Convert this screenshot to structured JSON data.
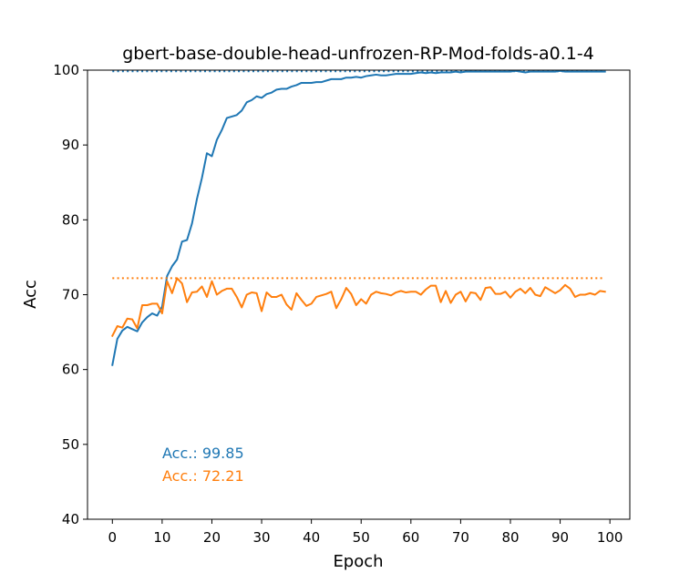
{
  "chart_data": {
    "type": "line",
    "title": "gbert-base-double-head-unfrozen-RP-Mod-folds-a0.1-4",
    "xlabel": "Epoch",
    "ylabel": "Acc",
    "xlim": [
      -5,
      104
    ],
    "ylim": [
      40,
      100
    ],
    "xticks": [
      0,
      10,
      20,
      30,
      40,
      50,
      60,
      70,
      80,
      90,
      100
    ],
    "yticks": [
      40,
      50,
      60,
      70,
      80,
      90,
      100
    ],
    "grid": false,
    "series": [
      {
        "color": "#1f77b4",
        "best": 99.85,
        "values": [
          60.6,
          64.1,
          65.2,
          65.7,
          65.4,
          65.1,
          66.3,
          67.0,
          67.5,
          67.2,
          68.4,
          72.5,
          73.8,
          74.7,
          77.1,
          77.3,
          79.5,
          82.8,
          85.6,
          88.9,
          88.5,
          90.7,
          92.0,
          93.6,
          93.8,
          94.0,
          94.6,
          95.7,
          96.0,
          96.5,
          96.3,
          96.8,
          97.0,
          97.4,
          97.5,
          97.5,
          97.8,
          98.0,
          98.3,
          98.3,
          98.3,
          98.4,
          98.4,
          98.6,
          98.8,
          98.8,
          98.8,
          99.0,
          99.0,
          99.1,
          99.0,
          99.2,
          99.3,
          99.4,
          99.3,
          99.3,
          99.4,
          99.5,
          99.5,
          99.5,
          99.5,
          99.6,
          99.7,
          99.6,
          99.7,
          99.6,
          99.7,
          99.7,
          99.7,
          99.8,
          99.7,
          99.8,
          99.8,
          99.8,
          99.8,
          99.8,
          99.8,
          99.8,
          99.8,
          99.8,
          99.8,
          99.9,
          99.8,
          99.7,
          99.8,
          99.8,
          99.8,
          99.8,
          99.8,
          99.8,
          99.9,
          99.8,
          99.8,
          99.8,
          99.8,
          99.8,
          99.8,
          99.8,
          99.8,
          99.8
        ]
      },
      {
        "color": "#ff7f0e",
        "best": 72.21,
        "values": [
          64.5,
          65.8,
          65.6,
          66.8,
          66.7,
          65.5,
          68.6,
          68.6,
          68.8,
          68.8,
          67.5,
          71.8,
          70.2,
          72.2,
          71.5,
          69.0,
          70.3,
          70.4,
          71.1,
          69.7,
          71.8,
          70.0,
          70.5,
          70.8,
          70.8,
          69.7,
          68.3,
          70.0,
          70.3,
          70.2,
          67.8,
          70.3,
          69.7,
          69.7,
          70.0,
          68.7,
          68.0,
          70.2,
          69.3,
          68.5,
          68.8,
          69.7,
          69.9,
          70.1,
          70.4,
          68.2,
          69.4,
          70.9,
          70.1,
          68.6,
          69.4,
          68.8,
          70.0,
          70.4,
          70.2,
          70.1,
          69.9,
          70.3,
          70.5,
          70.3,
          70.4,
          70.4,
          70.0,
          70.7,
          71.2,
          71.2,
          69.0,
          70.5,
          68.9,
          70.0,
          70.4,
          69.1,
          70.3,
          70.2,
          69.3,
          70.9,
          71.0,
          70.1,
          70.1,
          70.4,
          69.6,
          70.4,
          70.8,
          70.2,
          70.9,
          70.0,
          69.8,
          71.0,
          70.6,
          70.2,
          70.6,
          71.3,
          70.8,
          69.7,
          70.0,
          70.0,
          70.2,
          70.0,
          70.5,
          70.4
        ]
      }
    ],
    "annotations": [
      {
        "text": "Acc.: 99.85",
        "color": "#1f77b4"
      },
      {
        "text": "Acc.: 72.21",
        "color": "#ff7f0e"
      }
    ]
  }
}
